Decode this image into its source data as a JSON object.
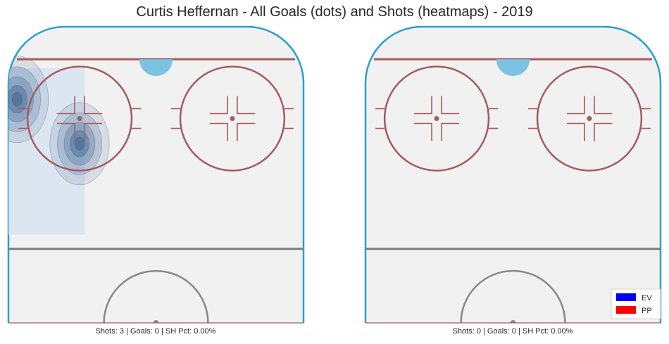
{
  "title": "Curtis Heffernan - All Goals (dots) and Shots (heatmaps) - 2019",
  "chart_data": [
    {
      "type": "heatmap",
      "panel": "left",
      "caption": "Shots: 3 | Goals: 0 | SH Pct: 0.00%",
      "stats": {
        "shots": 3,
        "goals": 0,
        "sh_pct": "0.00%"
      },
      "shot_hotspots": [
        {
          "x": -40.0,
          "y": 75.5,
          "intensity": 1.0
        },
        {
          "x": -22.0,
          "y": 60.5,
          "intensity": 0.95
        },
        {
          "x": -55.0,
          "y": 47.0,
          "intensity": 0.9
        }
      ],
      "goals": []
    },
    {
      "type": "heatmap",
      "panel": "right",
      "caption": "Shots: 0 | Goals: 0 | SH Pct: 0.00%",
      "stats": {
        "shots": 0,
        "goals": 0,
        "sh_pct": "0.00%"
      },
      "shot_hotspots": [],
      "goals": []
    }
  ],
  "legend": {
    "items": [
      {
        "label": "EV",
        "color": "#0000ff"
      },
      {
        "label": "PP",
        "color": "#ff0000"
      }
    ]
  },
  "colors": {
    "ice": "#f1f1f1",
    "boards": "#2aa0cf",
    "red_line": "#a65a5e",
    "blue_line": "#7d7d7d",
    "crease": "#7cc3e3",
    "heat_low": "#d7e3f0",
    "heat_high": "#3c6190"
  }
}
